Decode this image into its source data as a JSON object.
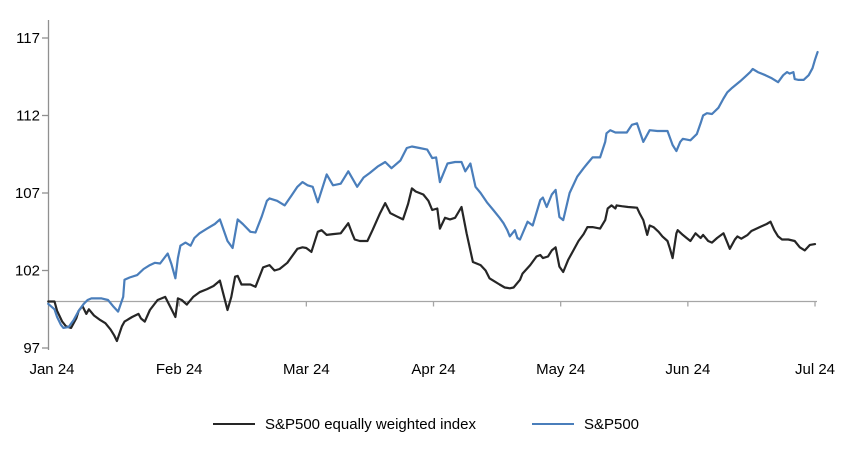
{
  "figure": {
    "background": "#FFFFFF"
  },
  "chart_data": {
    "type": "line",
    "title": "",
    "xlabel": "",
    "ylabel": "",
    "x_axis": {
      "tick_labels": [
        "Jan 24",
        "Feb 24",
        "Mar 24",
        "Apr 24",
        "May 24",
        "Jun 24",
        "Jul 24"
      ],
      "unit": "months since Jan 24 tick",
      "range": [
        0,
        6
      ]
    },
    "y_axis": {
      "ticks": [
        97,
        102,
        107,
        112,
        117
      ],
      "range": [
        97,
        117
      ]
    },
    "baseline_value": 100,
    "grid": "off",
    "legend_position": "bottom-center",
    "colors": {
      "axis": "#909090",
      "baseline": "#A6A6A6",
      "text": "#000000"
    },
    "series": [
      {
        "name": "S&P500 equally weighted index",
        "color": "#262626",
        "points": [
          [
            -0.03,
            100.0
          ],
          [
            0.02,
            100.0
          ],
          [
            0.04,
            99.4
          ],
          [
            0.08,
            98.7
          ],
          [
            0.11,
            98.4
          ],
          [
            0.15,
            98.3
          ],
          [
            0.19,
            98.9
          ],
          [
            0.21,
            99.4
          ],
          [
            0.24,
            99.7
          ],
          [
            0.27,
            99.2
          ],
          [
            0.29,
            99.5
          ],
          [
            0.33,
            99.1
          ],
          [
            0.38,
            98.8
          ],
          [
            0.42,
            98.6
          ],
          [
            0.46,
            98.2
          ],
          [
            0.49,
            97.8
          ],
          [
            0.51,
            97.45
          ],
          [
            0.55,
            98.4
          ],
          [
            0.57,
            98.7
          ],
          [
            0.63,
            99.0
          ],
          [
            0.68,
            99.2
          ],
          [
            0.7,
            98.9
          ],
          [
            0.73,
            98.7
          ],
          [
            0.77,
            99.45
          ],
          [
            0.83,
            100.1
          ],
          [
            0.89,
            100.3
          ],
          [
            0.94,
            99.5
          ],
          [
            0.97,
            99.0
          ],
          [
            0.99,
            100.2
          ],
          [
            1.02,
            100.1
          ],
          [
            1.06,
            99.8
          ],
          [
            1.11,
            100.3
          ],
          [
            1.16,
            100.6
          ],
          [
            1.22,
            100.8
          ],
          [
            1.27,
            101.0
          ],
          [
            1.32,
            101.35
          ],
          [
            1.35,
            100.4
          ],
          [
            1.38,
            99.45
          ],
          [
            1.41,
            100.3
          ],
          [
            1.44,
            101.6
          ],
          [
            1.46,
            101.65
          ],
          [
            1.49,
            101.1
          ],
          [
            1.56,
            101.1
          ],
          [
            1.6,
            100.95
          ],
          [
            1.66,
            102.2
          ],
          [
            1.71,
            102.35
          ],
          [
            1.75,
            102.0
          ],
          [
            1.79,
            102.1
          ],
          [
            1.85,
            102.5
          ],
          [
            1.93,
            103.4
          ],
          [
            1.97,
            103.5
          ],
          [
            2.0,
            103.45
          ],
          [
            2.04,
            103.2
          ],
          [
            2.09,
            104.5
          ],
          [
            2.12,
            104.6
          ],
          [
            2.16,
            104.3
          ],
          [
            2.21,
            104.35
          ],
          [
            2.27,
            104.4
          ],
          [
            2.33,
            105.05
          ],
          [
            2.36,
            104.4
          ],
          [
            2.38,
            104.0
          ],
          [
            2.42,
            103.9
          ],
          [
            2.48,
            103.9
          ],
          [
            2.52,
            104.6
          ],
          [
            2.58,
            105.7
          ],
          [
            2.62,
            106.35
          ],
          [
            2.66,
            105.7
          ],
          [
            2.71,
            105.5
          ],
          [
            2.76,
            105.3
          ],
          [
            2.8,
            106.3
          ],
          [
            2.83,
            107.3
          ],
          [
            2.86,
            107.1
          ],
          [
            2.92,
            106.9
          ],
          [
            2.96,
            106.5
          ],
          [
            2.99,
            105.9
          ],
          [
            3.03,
            106.0
          ],
          [
            3.05,
            104.7
          ],
          [
            3.09,
            105.4
          ],
          [
            3.13,
            105.3
          ],
          [
            3.17,
            105.4
          ],
          [
            3.22,
            106.1
          ],
          [
            3.26,
            104.4
          ],
          [
            3.31,
            102.55
          ],
          [
            3.37,
            102.35
          ],
          [
            3.41,
            102.0
          ],
          [
            3.44,
            101.5
          ],
          [
            3.48,
            101.3
          ],
          [
            3.52,
            101.1
          ],
          [
            3.56,
            100.9
          ],
          [
            3.6,
            100.85
          ],
          [
            3.63,
            100.9
          ],
          [
            3.68,
            101.4
          ],
          [
            3.7,
            101.8
          ],
          [
            3.76,
            102.35
          ],
          [
            3.81,
            102.9
          ],
          [
            3.84,
            103.0
          ],
          [
            3.86,
            102.8
          ],
          [
            3.9,
            102.9
          ],
          [
            3.93,
            103.3
          ],
          [
            3.96,
            103.5
          ],
          [
            3.99,
            102.25
          ],
          [
            4.02,
            101.9
          ],
          [
            4.06,
            102.7
          ],
          [
            4.1,
            103.3
          ],
          [
            4.14,
            103.9
          ],
          [
            4.18,
            104.35
          ],
          [
            4.21,
            104.8
          ],
          [
            4.25,
            104.8
          ],
          [
            4.31,
            104.7
          ],
          [
            4.35,
            105.25
          ],
          [
            4.37,
            106.0
          ],
          [
            4.4,
            106.2
          ],
          [
            4.43,
            106.0
          ],
          [
            4.44,
            106.2
          ],
          [
            4.48,
            106.15
          ],
          [
            4.53,
            106.1
          ],
          [
            4.6,
            106.05
          ],
          [
            4.62,
            105.7
          ],
          [
            4.65,
            105.25
          ],
          [
            4.68,
            104.3
          ],
          [
            4.7,
            104.9
          ],
          [
            4.73,
            104.8
          ],
          [
            4.77,
            104.5
          ],
          [
            4.8,
            104.2
          ],
          [
            4.84,
            103.9
          ],
          [
            4.86,
            103.4
          ],
          [
            4.88,
            102.8
          ],
          [
            4.91,
            104.4
          ],
          [
            4.92,
            104.6
          ],
          [
            4.96,
            104.3
          ],
          [
            4.99,
            104.1
          ],
          [
            5.02,
            103.9
          ],
          [
            5.06,
            104.4
          ],
          [
            5.1,
            104.1
          ],
          [
            5.12,
            104.3
          ],
          [
            5.16,
            103.9
          ],
          [
            5.19,
            103.8
          ],
          [
            5.23,
            104.1
          ],
          [
            5.28,
            104.4
          ],
          [
            5.31,
            103.8
          ],
          [
            5.33,
            103.4
          ],
          [
            5.37,
            104.0
          ],
          [
            5.39,
            104.2
          ],
          [
            5.42,
            104.05
          ],
          [
            5.47,
            104.3
          ],
          [
            5.5,
            104.55
          ],
          [
            5.54,
            104.7
          ],
          [
            5.58,
            104.85
          ],
          [
            5.62,
            105.0
          ],
          [
            5.65,
            105.15
          ],
          [
            5.68,
            104.6
          ],
          [
            5.71,
            104.2
          ],
          [
            5.74,
            104.0
          ],
          [
            5.79,
            104.0
          ],
          [
            5.84,
            103.9
          ],
          [
            5.88,
            103.5
          ],
          [
            5.92,
            103.3
          ],
          [
            5.96,
            103.65
          ],
          [
            6.0,
            103.7
          ]
        ]
      },
      {
        "name": "S&P500",
        "color": "#4A7EBB",
        "points": [
          [
            -0.03,
            99.85
          ],
          [
            0.02,
            99.5
          ],
          [
            0.04,
            99.0
          ],
          [
            0.07,
            98.5
          ],
          [
            0.09,
            98.3
          ],
          [
            0.13,
            98.35
          ],
          [
            0.17,
            98.8
          ],
          [
            0.21,
            99.4
          ],
          [
            0.25,
            99.85
          ],
          [
            0.28,
            100.1
          ],
          [
            0.31,
            100.2
          ],
          [
            0.39,
            100.2
          ],
          [
            0.44,
            100.1
          ],
          [
            0.48,
            99.7
          ],
          [
            0.52,
            99.35
          ],
          [
            0.56,
            100.3
          ],
          [
            0.57,
            101.4
          ],
          [
            0.61,
            101.55
          ],
          [
            0.67,
            101.7
          ],
          [
            0.72,
            102.1
          ],
          [
            0.77,
            102.35
          ],
          [
            0.81,
            102.5
          ],
          [
            0.85,
            102.45
          ],
          [
            0.91,
            103.1
          ],
          [
            0.94,
            102.4
          ],
          [
            0.97,
            101.5
          ],
          [
            0.99,
            102.8
          ],
          [
            1.01,
            103.6
          ],
          [
            1.05,
            103.8
          ],
          [
            1.09,
            103.6
          ],
          [
            1.12,
            104.1
          ],
          [
            1.16,
            104.4
          ],
          [
            1.22,
            104.7
          ],
          [
            1.28,
            105.0
          ],
          [
            1.32,
            105.3
          ],
          [
            1.38,
            103.9
          ],
          [
            1.42,
            103.45
          ],
          [
            1.46,
            105.3
          ],
          [
            1.5,
            105.0
          ],
          [
            1.56,
            104.5
          ],
          [
            1.6,
            104.45
          ],
          [
            1.65,
            105.5
          ],
          [
            1.69,
            106.5
          ],
          [
            1.71,
            106.65
          ],
          [
            1.77,
            106.5
          ],
          [
            1.83,
            106.2
          ],
          [
            1.88,
            106.8
          ],
          [
            1.93,
            107.4
          ],
          [
            1.97,
            107.7
          ],
          [
            2.01,
            107.5
          ],
          [
            2.05,
            107.4
          ],
          [
            2.09,
            106.4
          ],
          [
            2.16,
            108.2
          ],
          [
            2.21,
            107.5
          ],
          [
            2.27,
            107.6
          ],
          [
            2.33,
            108.4
          ],
          [
            2.4,
            107.4
          ],
          [
            2.45,
            108.0
          ],
          [
            2.5,
            108.3
          ],
          [
            2.56,
            108.7
          ],
          [
            2.62,
            109.0
          ],
          [
            2.67,
            108.6
          ],
          [
            2.74,
            109.1
          ],
          [
            2.79,
            109.9
          ],
          [
            2.83,
            110.0
          ],
          [
            2.89,
            109.9
          ],
          [
            2.95,
            109.8
          ],
          [
            2.99,
            109.25
          ],
          [
            3.02,
            109.3
          ],
          [
            3.05,
            107.7
          ],
          [
            3.11,
            108.9
          ],
          [
            3.17,
            109.0
          ],
          [
            3.22,
            109.0
          ],
          [
            3.25,
            108.4
          ],
          [
            3.29,
            108.9
          ],
          [
            3.33,
            107.4
          ],
          [
            3.37,
            107.0
          ],
          [
            3.42,
            106.4
          ],
          [
            3.47,
            105.9
          ],
          [
            3.52,
            105.4
          ],
          [
            3.55,
            105.05
          ],
          [
            3.58,
            104.6
          ],
          [
            3.6,
            104.2
          ],
          [
            3.64,
            104.6
          ],
          [
            3.66,
            104.1
          ],
          [
            3.68,
            104.0
          ],
          [
            3.74,
            105.15
          ],
          [
            3.78,
            104.9
          ],
          [
            3.84,
            106.55
          ],
          [
            3.86,
            106.7
          ],
          [
            3.89,
            106.1
          ],
          [
            3.93,
            106.9
          ],
          [
            3.96,
            107.2
          ],
          [
            3.99,
            105.45
          ],
          [
            4.02,
            105.25
          ],
          [
            4.07,
            107.0
          ],
          [
            4.13,
            108.05
          ],
          [
            4.18,
            108.6
          ],
          [
            4.21,
            108.9
          ],
          [
            4.25,
            109.3
          ],
          [
            4.31,
            109.3
          ],
          [
            4.35,
            110.3
          ],
          [
            4.36,
            110.85
          ],
          [
            4.39,
            111.05
          ],
          [
            4.43,
            110.9
          ],
          [
            4.52,
            110.9
          ],
          [
            4.56,
            111.4
          ],
          [
            4.6,
            111.5
          ],
          [
            4.65,
            110.3
          ],
          [
            4.7,
            111.05
          ],
          [
            4.76,
            111.0
          ],
          [
            4.84,
            111.0
          ],
          [
            4.88,
            110.1
          ],
          [
            4.91,
            109.7
          ],
          [
            4.94,
            110.3
          ],
          [
            4.96,
            110.5
          ],
          [
            5.02,
            110.4
          ],
          [
            5.07,
            110.8
          ],
          [
            5.1,
            111.5
          ],
          [
            5.12,
            112.0
          ],
          [
            5.15,
            112.15
          ],
          [
            5.19,
            112.1
          ],
          [
            5.24,
            112.5
          ],
          [
            5.28,
            113.1
          ],
          [
            5.31,
            113.5
          ],
          [
            5.35,
            113.8
          ],
          [
            5.41,
            114.2
          ],
          [
            5.45,
            114.5
          ],
          [
            5.49,
            114.8
          ],
          [
            5.51,
            115.0
          ],
          [
            5.55,
            114.8
          ],
          [
            5.61,
            114.6
          ],
          [
            5.66,
            114.4
          ],
          [
            5.71,
            114.15
          ],
          [
            5.75,
            114.6
          ],
          [
            5.78,
            114.8
          ],
          [
            5.8,
            114.7
          ],
          [
            5.83,
            114.8
          ],
          [
            5.84,
            114.35
          ],
          [
            5.87,
            114.3
          ],
          [
            5.91,
            114.3
          ],
          [
            5.95,
            114.6
          ],
          [
            5.98,
            115.05
          ],
          [
            6.0,
            115.6
          ],
          [
            6.02,
            116.1
          ]
        ]
      }
    ]
  }
}
